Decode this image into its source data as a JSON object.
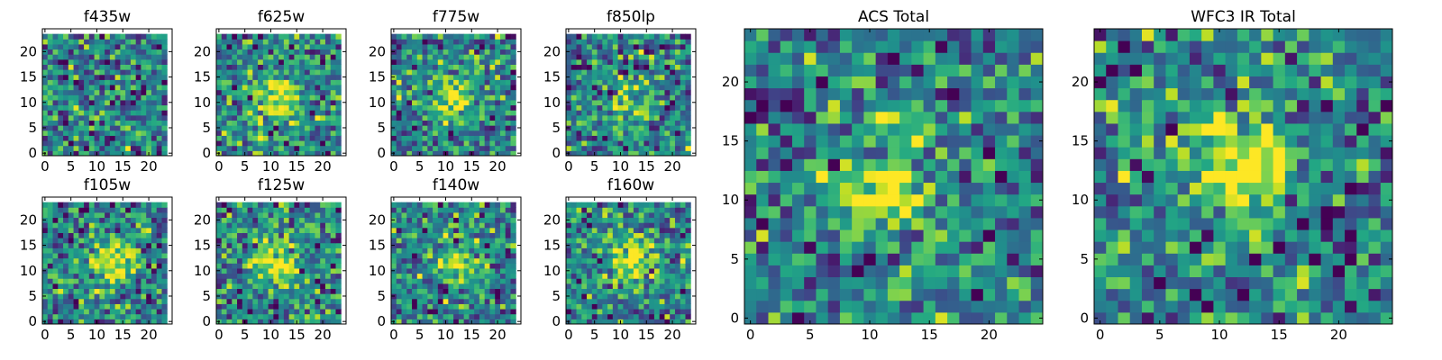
{
  "chart_data": [
    {
      "type": "heatmap",
      "title": "f435w",
      "size": 24,
      "xticks": [
        0,
        5,
        10,
        15,
        20
      ],
      "yticks": [
        0,
        5,
        10,
        15,
        20
      ],
      "xlim": [
        -0.5,
        24.5
      ],
      "ylim": [
        -0.5,
        24.5
      ],
      "colormap": "viridis",
      "source_peak": [
        12,
        11
      ],
      "source_amplitude": 0.0
    },
    {
      "type": "heatmap",
      "title": "f625w",
      "size": 24,
      "xticks": [
        0,
        5,
        10,
        15,
        20
      ],
      "yticks": [
        0,
        5,
        10,
        15,
        20
      ],
      "xlim": [
        -0.5,
        24.5
      ],
      "ylim": [
        -0.5,
        24.5
      ],
      "colormap": "viridis",
      "source_peak": [
        11,
        11
      ],
      "source_amplitude": 0.55
    },
    {
      "type": "heatmap",
      "title": "f775w",
      "size": 24,
      "xticks": [
        0,
        5,
        10,
        15,
        20
      ],
      "yticks": [
        0,
        5,
        10,
        15,
        20
      ],
      "xlim": [
        -0.5,
        24.5
      ],
      "ylim": [
        -0.5,
        24.5
      ],
      "colormap": "viridis",
      "source_peak": [
        11,
        11
      ],
      "source_amplitude": 0.5
    },
    {
      "type": "heatmap",
      "title": "f850lp",
      "size": 24,
      "xticks": [
        0,
        5,
        10,
        15,
        20
      ],
      "yticks": [
        0,
        5,
        10,
        15,
        20
      ],
      "xlim": [
        -0.5,
        24.5
      ],
      "ylim": [
        -0.5,
        24.5
      ],
      "colormap": "viridis",
      "source_peak": [
        11,
        10
      ],
      "source_amplitude": 0.35
    },
    {
      "type": "heatmap",
      "title": "f105w",
      "size": 24,
      "xticks": [
        0,
        5,
        10,
        15,
        20
      ],
      "yticks": [
        0,
        5,
        10,
        15,
        20
      ],
      "xlim": [
        -0.5,
        24.5
      ],
      "ylim": [
        -0.5,
        24.5
      ],
      "colormap": "viridis",
      "source_peak": [
        13,
        12
      ],
      "source_amplitude": 0.55
    },
    {
      "type": "heatmap",
      "title": "f125w",
      "size": 24,
      "xticks": [
        0,
        5,
        10,
        15,
        20
      ],
      "yticks": [
        0,
        5,
        10,
        15,
        20
      ],
      "xlim": [
        -0.5,
        24.5
      ],
      "ylim": [
        -0.5,
        24.5
      ],
      "colormap": "viridis",
      "source_peak": [
        11,
        12
      ],
      "source_amplitude": 0.6
    },
    {
      "type": "heatmap",
      "title": "f140w",
      "size": 24,
      "xticks": [
        0,
        5,
        10,
        15,
        20
      ],
      "yticks": [
        0,
        5,
        10,
        15,
        20
      ],
      "xlim": [
        -0.5,
        24.5
      ],
      "ylim": [
        -0.5,
        24.5
      ],
      "colormap": "viridis",
      "source_peak": [
        12,
        12
      ],
      "source_amplitude": 0.45
    },
    {
      "type": "heatmap",
      "title": "f160w",
      "size": 24,
      "xticks": [
        0,
        5,
        10,
        15,
        20
      ],
      "yticks": [
        0,
        5,
        10,
        15,
        20
      ],
      "xlim": [
        -0.5,
        24.5
      ],
      "ylim": [
        -0.5,
        24.5
      ],
      "colormap": "viridis",
      "source_peak": [
        13,
        12
      ],
      "source_amplitude": 0.55
    },
    {
      "type": "heatmap",
      "title": "ACS Total",
      "size": 25,
      "xticks": [
        0,
        5,
        10,
        15,
        20
      ],
      "yticks": [
        0,
        5,
        10,
        15,
        20
      ],
      "xlim": [
        -0.5,
        24.5
      ],
      "ylim": [
        -0.5,
        24.5
      ],
      "colormap": "viridis",
      "source_peak": [
        11,
        11
      ],
      "source_amplitude": 0.5
    },
    {
      "type": "heatmap",
      "title": "WFC3 IR Total",
      "size": 25,
      "xticks": [
        0,
        5,
        10,
        15,
        20
      ],
      "yticks": [
        0,
        5,
        10,
        15,
        20
      ],
      "xlim": [
        -0.5,
        24.5
      ],
      "ylim": [
        -0.5,
        24.5
      ],
      "colormap": "viridis",
      "source_peak": [
        12,
        13
      ],
      "source_amplitude": 0.55
    }
  ]
}
